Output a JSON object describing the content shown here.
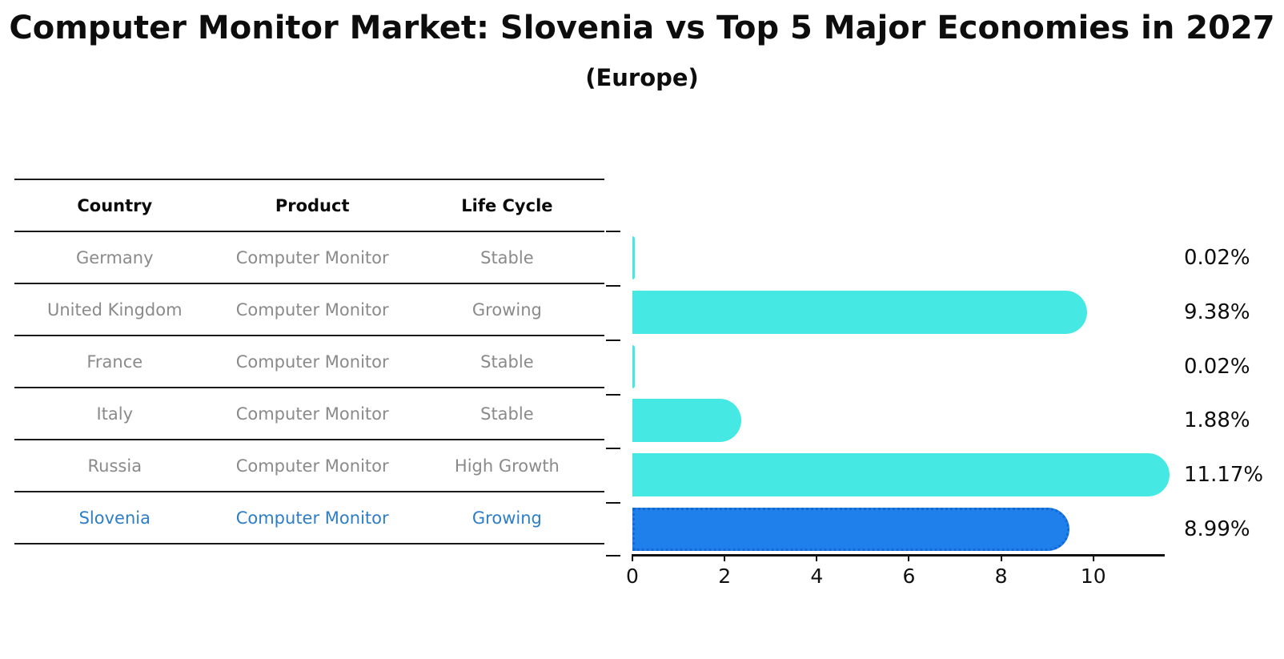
{
  "title": "Computer Monitor Market: Slovenia vs Top 5 Major Economies in 2027",
  "subtitle": "(Europe)",
  "table": {
    "headers": {
      "country": "Country",
      "product": "Product",
      "life_cycle": "Life Cycle"
    },
    "rows": [
      {
        "country": "Germany",
        "product": "Computer Monitor",
        "life_cycle": "Stable",
        "highlight": false
      },
      {
        "country": "United Kingdom",
        "product": "Computer Monitor",
        "life_cycle": "Growing",
        "highlight": false
      },
      {
        "country": "France",
        "product": "Computer Monitor",
        "life_cycle": "Stable",
        "highlight": false
      },
      {
        "country": "Italy",
        "product": "Computer Monitor",
        "life_cycle": "Stable",
        "highlight": false
      },
      {
        "country": "Russia",
        "product": "Computer Monitor",
        "life_cycle": "High Growth",
        "highlight": false
      },
      {
        "country": "Slovenia",
        "product": "Computer Monitor",
        "life_cycle": "Growing",
        "highlight": true
      }
    ]
  },
  "chart_data": {
    "type": "bar",
    "orientation": "horizontal",
    "title": "Computer Monitor Market: Slovenia vs Top 5 Major Economies in 2027 (Europe)",
    "categories": [
      "Germany",
      "United Kingdom",
      "France",
      "Italy",
      "Russia",
      "Slovenia"
    ],
    "values": [
      0.02,
      9.38,
      0.02,
      1.88,
      11.17,
      8.99
    ],
    "value_labels": [
      "0.02%",
      "9.38%",
      "0.02%",
      "1.88%",
      "11.17%",
      "8.99%"
    ],
    "highlight_index": 5,
    "x_ticks": [
      0,
      2,
      4,
      6,
      8,
      10
    ],
    "xlim": [
      0,
      11.55
    ],
    "grid": false,
    "legend": "none",
    "colors": {
      "bar": "#45e8e2",
      "highlight_bar": "#1f80ec",
      "highlight_bar_edge": "#1468d2",
      "highlight_text": "#2d7ec6",
      "row_text": "#8a8a8a",
      "axis": "#111111"
    }
  }
}
